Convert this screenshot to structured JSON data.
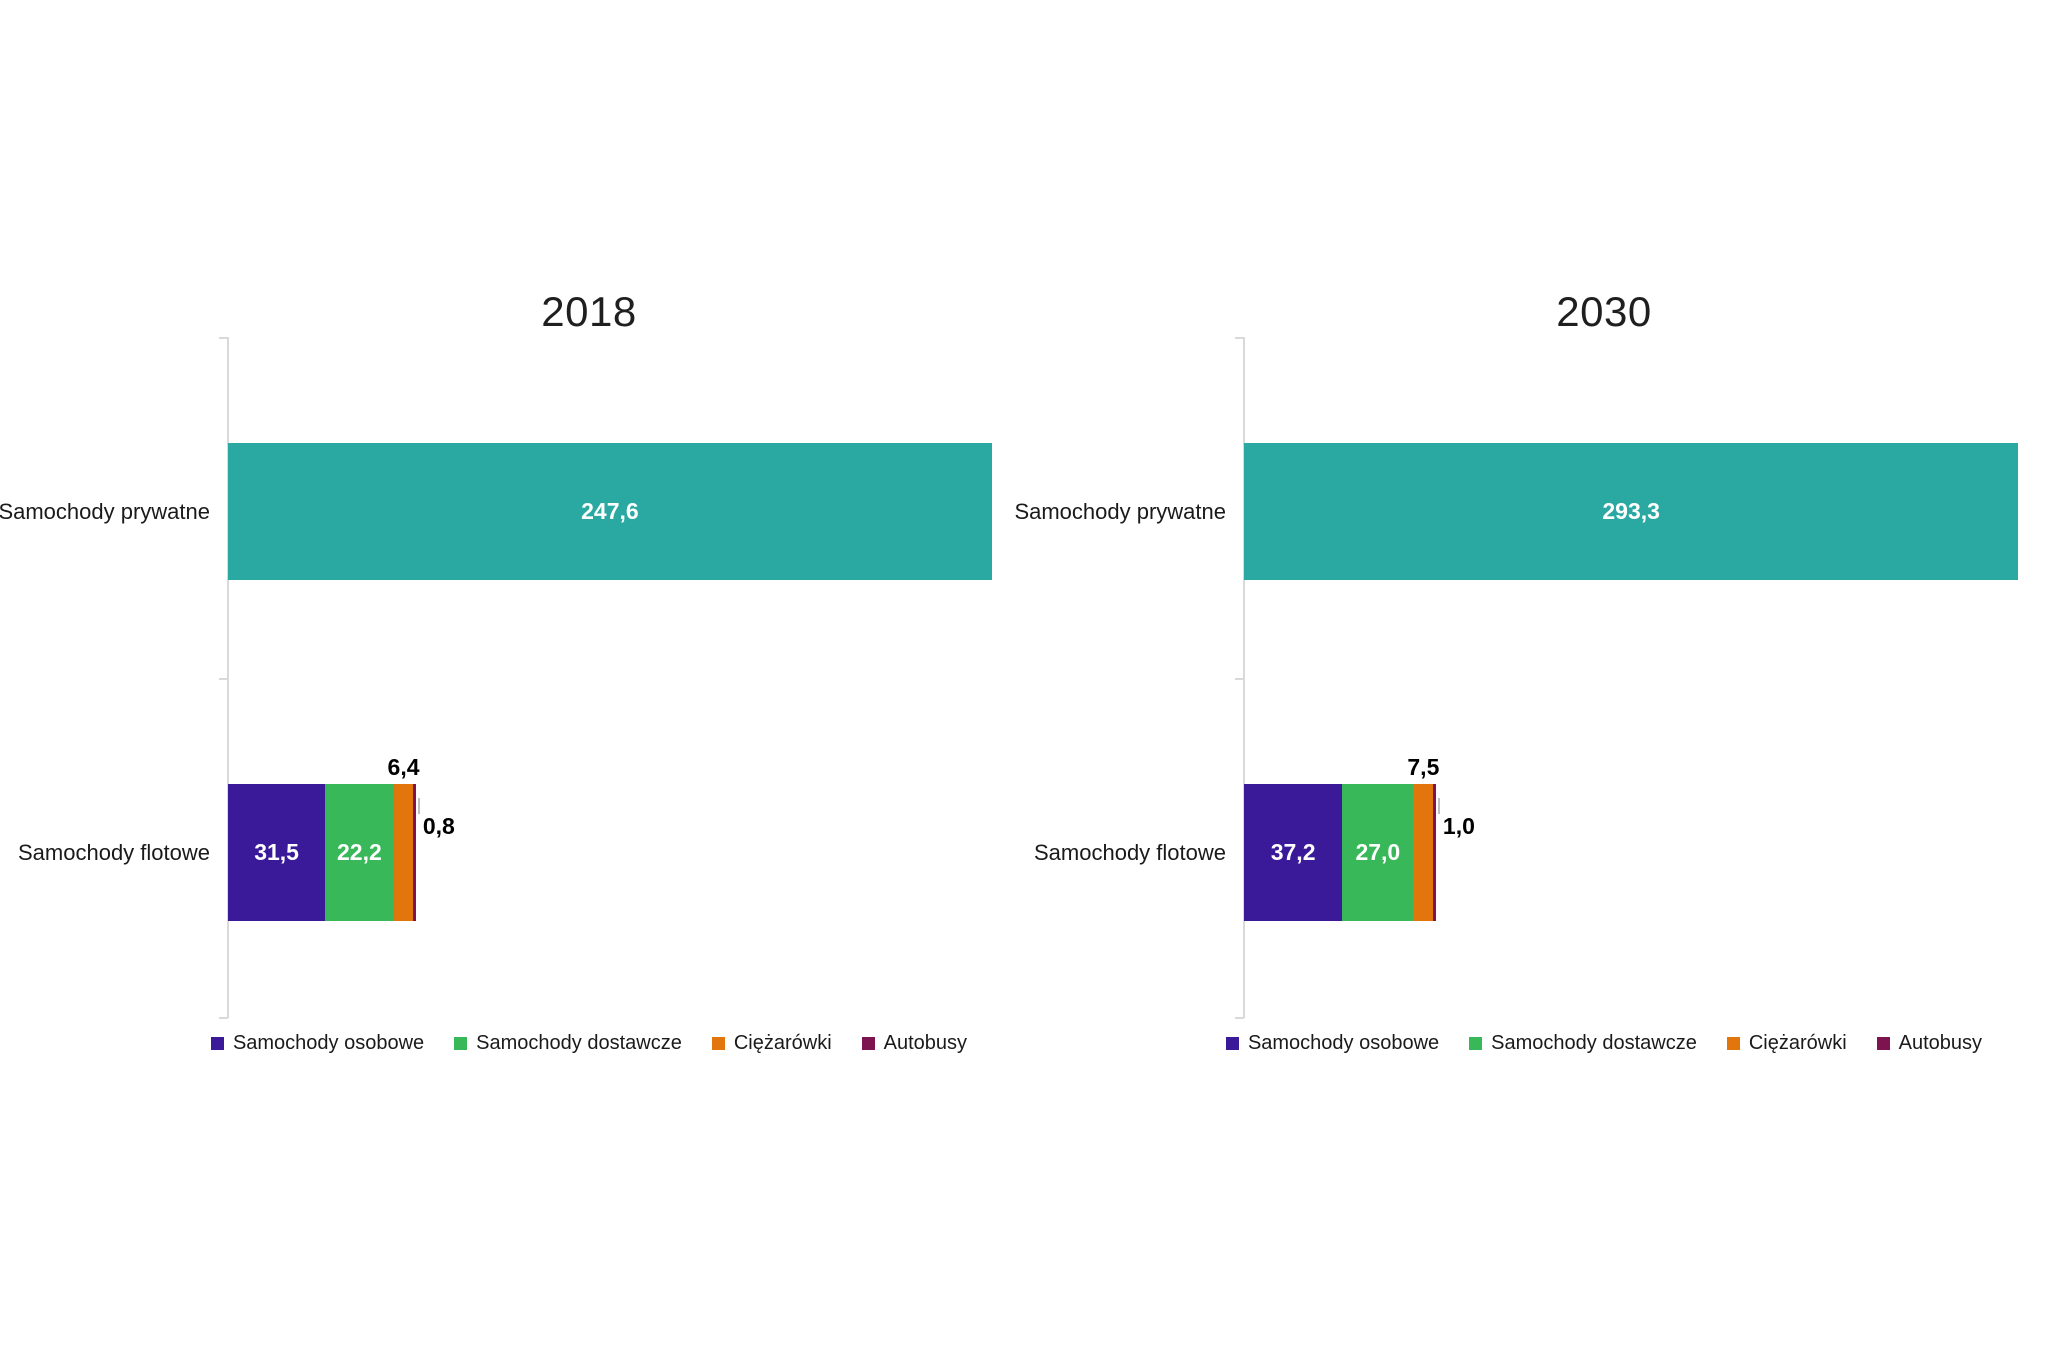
{
  "page": {
    "background": "#FFFFFF"
  },
  "styles": {
    "text_color": "#1A1A1A",
    "title_color": "#1F1F1F",
    "axis_color": "#D9D9D9",
    "leader_color": "#BFBFBF",
    "inside_value_color": "#FFFFFF",
    "outside_value_color": "#000000"
  },
  "legend_items": [
    {
      "label": "Samochody osobowe",
      "color": "#3A1A99"
    },
    {
      "label": "Samochody dostawcze",
      "color": "#38B858"
    },
    {
      "label": "Ciężarówki",
      "color": "#E2760C"
    },
    {
      "label": "Autobusy",
      "color": "#7D1450"
    }
  ],
  "chart_data": [
    {
      "type": "bar",
      "orientation": "horizontal",
      "stacked": true,
      "title": "2018",
      "xlim": [
        0,
        330
      ],
      "grid": false,
      "legend_position": "bottom",
      "categories": [
        "Samochody prywatne",
        "Samochody flotowe"
      ],
      "bars": [
        {
          "category": "Samochody prywatne",
          "segments": [
            {
              "series": "Samochody prywatne",
              "value": 247.6,
              "label": "247,6",
              "color": "#2AA9A3",
              "label_position": "inside"
            }
          ]
        },
        {
          "category": "Samochody flotowe",
          "segments": [
            {
              "series": "Samochody osobowe",
              "value": 31.5,
              "label": "31,5",
              "color": "#3A1A99",
              "label_position": "inside"
            },
            {
              "series": "Samochody dostawcze",
              "value": 22.2,
              "label": "22,2",
              "color": "#38B858",
              "label_position": "inside"
            },
            {
              "series": "Ciężarówki",
              "value": 6.4,
              "label": "6,4",
              "color": "#E2760C",
              "label_position": "above"
            },
            {
              "series": "Autobusy",
              "value": 0.8,
              "label": "0,8",
              "color": "#7D1450",
              "label_position": "right"
            }
          ]
        }
      ]
    },
    {
      "type": "bar",
      "orientation": "horizontal",
      "stacked": true,
      "title": "2030",
      "xlim": [
        0,
        300
      ],
      "grid": false,
      "legend_position": "bottom",
      "categories": [
        "Samochody prywatne",
        "Samochody flotowe"
      ],
      "bars": [
        {
          "category": "Samochody prywatne",
          "segments": [
            {
              "series": "Samochody prywatne",
              "value": 293.3,
              "label": "293,3",
              "color": "#2AA9A3",
              "label_position": "inside"
            }
          ]
        },
        {
          "category": "Samochody flotowe",
          "segments": [
            {
              "series": "Samochody osobowe",
              "value": 37.2,
              "label": "37,2",
              "color": "#3A1A99",
              "label_position": "inside"
            },
            {
              "series": "Samochody dostawcze",
              "value": 27.0,
              "label": "27,0",
              "color": "#38B858",
              "label_position": "inside"
            },
            {
              "series": "Ciężarówki",
              "value": 7.5,
              "label": "7,5",
              "color": "#E2760C",
              "label_position": "above"
            },
            {
              "series": "Autobusy",
              "value": 1.0,
              "label": "1,0",
              "color": "#7D1450",
              "label_position": "right"
            }
          ]
        }
      ]
    }
  ]
}
